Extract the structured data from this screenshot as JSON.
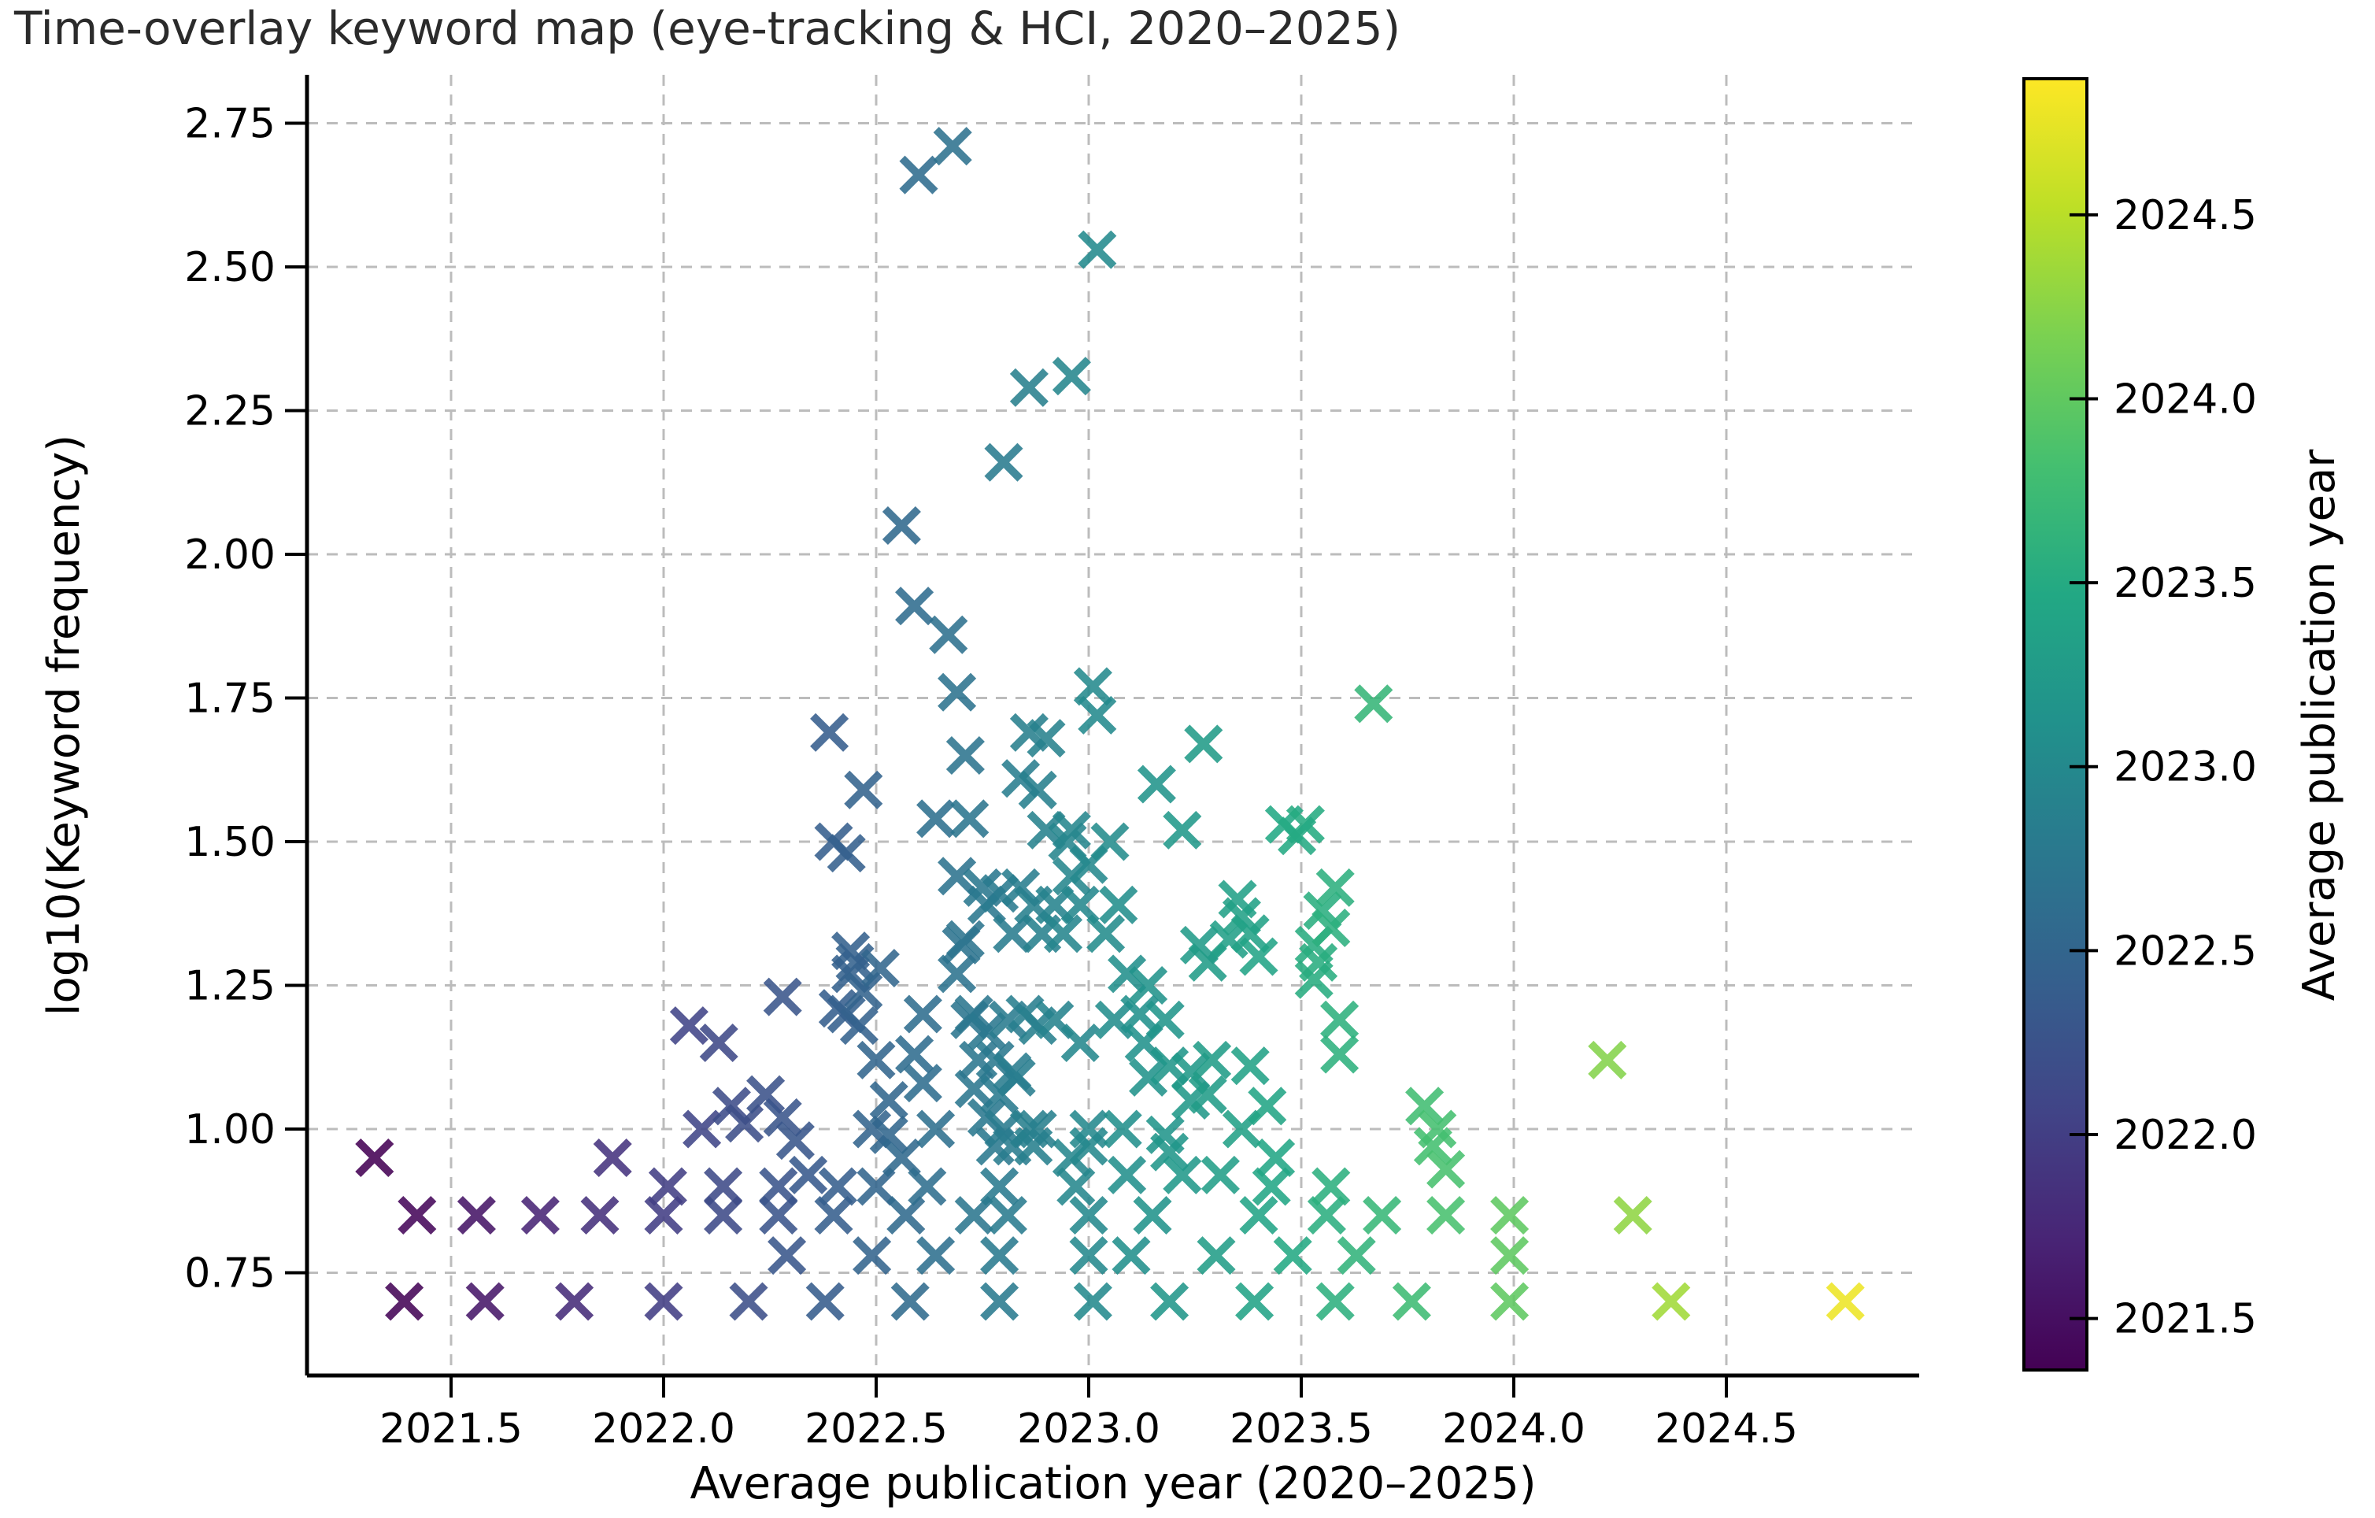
{
  "title": "Time-overlay keyword map (eye-tracking & HCI, 2020–2025)",
  "axes": {
    "xlabel": "Average publication year (2020–2025)",
    "ylabel": "log10(Keyword frequency)",
    "x_ticks": [
      2021.5,
      2022.0,
      2022.5,
      2023.0,
      2023.5,
      2024.0,
      2024.5
    ],
    "x_tick_labels": [
      "2021.5",
      "2022.0",
      "2022.5",
      "2023.0",
      "2023.5",
      "2024.0",
      "2024.5"
    ],
    "y_ticks": [
      0.75,
      1.0,
      1.25,
      1.5,
      1.75,
      2.0,
      2.25,
      2.5,
      2.75
    ],
    "y_tick_labels": [
      "0.75",
      "1.00",
      "1.25",
      "1.50",
      "1.75",
      "2.00",
      "2.25",
      "2.50",
      "2.75"
    ],
    "grid": true
  },
  "colorbar": {
    "label": "Average publication year",
    "ticks": [
      2021.5,
      2022.0,
      2022.5,
      2023.0,
      2023.5,
      2024.0,
      2024.5
    ],
    "tick_labels": [
      "2021.5",
      "2022.0",
      "2022.5",
      "2023.0",
      "2023.5",
      "2024.0",
      "2024.5"
    ],
    "domain": [
      2021.36,
      2024.87
    ]
  },
  "colormap": {
    "name": "viridis",
    "stops": [
      [
        0.0,
        "#440154"
      ],
      [
        0.1,
        "#482475"
      ],
      [
        0.2,
        "#414487"
      ],
      [
        0.3,
        "#355f8d"
      ],
      [
        0.4,
        "#2a788e"
      ],
      [
        0.5,
        "#21918c"
      ],
      [
        0.6,
        "#22a884"
      ],
      [
        0.7,
        "#44bf70"
      ],
      [
        0.8,
        "#7ad151"
      ],
      [
        0.9,
        "#bddf26"
      ],
      [
        1.0,
        "#fde725"
      ]
    ]
  },
  "chart_data": {
    "type": "scatter",
    "marker": "x",
    "title": "Time-overlay keyword map (eye-tracking & HCI, 2020–2025)",
    "xlabel": "Average publication year (2020–2025)",
    "ylabel": "log10(Keyword frequency)",
    "xlim": [
      2021.16,
      2024.95
    ],
    "ylim": [
      0.63,
      2.86
    ],
    "color_by": "x",
    "legend": "none",
    "points": [
      [
        2021.32,
        0.95
      ],
      [
        2021.39,
        0.7
      ],
      [
        2021.42,
        0.85
      ],
      [
        2021.56,
        0.85
      ],
      [
        2021.58,
        0.7
      ],
      [
        2021.71,
        0.85
      ],
      [
        2021.79,
        0.7
      ],
      [
        2021.85,
        0.85
      ],
      [
        2021.88,
        0.95
      ],
      [
        2022.0,
        0.7
      ],
      [
        2022.0,
        0.85
      ],
      [
        2022.01,
        0.9
      ],
      [
        2022.06,
        1.18
      ],
      [
        2022.09,
        1.0
      ],
      [
        2022.13,
        1.15
      ],
      [
        2022.14,
        0.85
      ],
      [
        2022.14,
        0.9
      ],
      [
        2022.16,
        1.04
      ],
      [
        2022.19,
        1.01
      ],
      [
        2022.2,
        0.7
      ],
      [
        2022.24,
        1.06
      ],
      [
        2022.27,
        0.85
      ],
      [
        2022.27,
        0.9
      ],
      [
        2022.28,
        1.02
      ],
      [
        2022.28,
        1.23
      ],
      [
        2022.29,
        0.78
      ],
      [
        2022.31,
        0.98
      ],
      [
        2022.34,
        0.92
      ],
      [
        2022.38,
        0.7
      ],
      [
        2022.4,
        0.85
      ],
      [
        2022.41,
        0.9
      ],
      [
        2022.41,
        1.21
      ],
      [
        2022.43,
        1.2
      ],
      [
        2022.44,
        1.27
      ],
      [
        2022.45,
        1.29
      ],
      [
        2022.44,
        1.31
      ],
      [
        2022.46,
        1.18
      ],
      [
        2022.47,
        1.24
      ],
      [
        2022.51,
        1.28
      ],
      [
        2022.39,
        1.69
      ],
      [
        2022.4,
        1.5
      ],
      [
        2022.43,
        1.48
      ],
      [
        2022.47,
        1.59
      ],
      [
        2022.49,
        0.78
      ],
      [
        2022.5,
        0.9
      ],
      [
        2022.49,
        1.0
      ],
      [
        2022.5,
        1.12
      ],
      [
        2022.53,
        1.05
      ],
      [
        2022.53,
        0.99
      ],
      [
        2022.56,
        2.05
      ],
      [
        2022.6,
        2.66
      ],
      [
        2022.68,
        2.71
      ],
      [
        2022.59,
        1.91
      ],
      [
        2022.67,
        1.86
      ],
      [
        2022.69,
        1.76
      ],
      [
        2022.57,
        0.85
      ],
      [
        2022.58,
        0.7
      ],
      [
        2022.56,
        0.95
      ],
      [
        2022.59,
        1.13
      ],
      [
        2022.61,
        1.2
      ],
      [
        2022.61,
        1.08
      ],
      [
        2022.62,
        0.9
      ],
      [
        2022.64,
        0.78
      ],
      [
        2022.64,
        1.0
      ],
      [
        2022.64,
        1.54
      ],
      [
        2022.72,
        1.54
      ],
      [
        2022.69,
        1.44
      ],
      [
        2022.7,
        1.32
      ],
      [
        2022.69,
        1.27
      ],
      [
        2022.71,
        1.33
      ],
      [
        2022.71,
        1.65
      ],
      [
        2022.72,
        1.19
      ],
      [
        2022.73,
        1.2
      ],
      [
        2022.74,
        1.12
      ],
      [
        2022.73,
        1.07
      ],
      [
        2022.73,
        0.85
      ],
      [
        2022.75,
        1.42
      ],
      [
        2022.76,
        1.39
      ],
      [
        2022.76,
        1.17
      ],
      [
        2022.76,
        1.02
      ],
      [
        2022.78,
        1.12
      ],
      [
        2022.78,
        0.97
      ],
      [
        2022.79,
        1.41
      ],
      [
        2022.79,
        1.06
      ],
      [
        2022.79,
        0.78
      ],
      [
        2022.79,
        0.9
      ],
      [
        2022.79,
        0.7
      ],
      [
        2022.8,
        1.0
      ],
      [
        2022.81,
        1.19
      ],
      [
        2022.82,
        1.34
      ],
      [
        2022.82,
        1.1
      ],
      [
        2022.82,
        0.97
      ],
      [
        2022.81,
        0.85
      ],
      [
        2022.83,
        1.09
      ],
      [
        2022.84,
        1.42
      ],
      [
        2022.84,
        1.61
      ],
      [
        2022.85,
        1.2
      ],
      [
        2022.86,
        1.69
      ],
      [
        2022.86,
        1.0
      ],
      [
        2022.87,
        1.39
      ],
      [
        2022.87,
        0.97
      ],
      [
        2022.88,
        1.59
      ],
      [
        2022.88,
        1.18
      ],
      [
        2022.88,
        1.0
      ],
      [
        2022.89,
        1.34
      ],
      [
        2022.9,
        1.68
      ],
      [
        2022.9,
        1.52
      ],
      [
        2022.92,
        1.39
      ],
      [
        2022.92,
        1.19
      ],
      [
        2022.94,
        1.34
      ],
      [
        2022.95,
        1.5
      ],
      [
        2022.96,
        2.31
      ],
      [
        2022.96,
        1.44
      ],
      [
        2022.96,
        1.52
      ],
      [
        2022.96,
        0.95
      ],
      [
        2022.97,
        0.9
      ],
      [
        2022.98,
        1.39
      ],
      [
        2022.98,
        1.15
      ],
      [
        2023.0,
        1.46
      ],
      [
        2023.0,
        1.0
      ],
      [
        2023.0,
        0.97
      ],
      [
        2023.0,
        0.85
      ],
      [
        2023.0,
        0.78
      ],
      [
        2023.01,
        0.7
      ],
      [
        2022.8,
        2.16
      ],
      [
        2022.86,
        2.29
      ],
      [
        2023.02,
        2.53
      ],
      [
        2023.01,
        1.77
      ],
      [
        2023.02,
        1.72
      ],
      [
        2023.04,
        1.34
      ],
      [
        2023.05,
        1.5
      ],
      [
        2023.07,
        1.39
      ],
      [
        2023.06,
        1.19
      ],
      [
        2023.08,
        1.0
      ],
      [
        2023.09,
        1.27
      ],
      [
        2023.09,
        0.92
      ],
      [
        2023.1,
        0.78
      ],
      [
        2023.12,
        1.2
      ],
      [
        2023.13,
        1.15
      ],
      [
        2023.14,
        1.25
      ],
      [
        2023.14,
        1.09
      ],
      [
        2023.15,
        0.85
      ],
      [
        2023.16,
        1.6
      ],
      [
        2023.18,
        1.19
      ],
      [
        2023.18,
        0.99
      ],
      [
        2023.19,
        1.11
      ],
      [
        2023.19,
        0.96
      ],
      [
        2023.19,
        0.7
      ],
      [
        2023.22,
        1.52
      ],
      [
        2023.22,
        0.92
      ],
      [
        2023.24,
        1.1
      ],
      [
        2023.24,
        1.05
      ],
      [
        2023.26,
        1.32
      ],
      [
        2023.27,
        1.67
      ],
      [
        2023.28,
        1.29
      ],
      [
        2023.28,
        1.06
      ],
      [
        2023.29,
        1.12
      ],
      [
        2023.3,
        0.78
      ],
      [
        2023.31,
        0.92
      ],
      [
        2023.33,
        1.33
      ],
      [
        2023.35,
        1.4
      ],
      [
        2023.36,
        1.37
      ],
      [
        2023.38,
        1.34
      ],
      [
        2023.36,
        1.0
      ],
      [
        2023.38,
        1.11
      ],
      [
        2023.39,
        0.7
      ],
      [
        2023.4,
        1.3
      ],
      [
        2023.4,
        0.85
      ],
      [
        2023.42,
        1.04
      ],
      [
        2023.43,
        0.9
      ],
      [
        2023.44,
        0.95
      ],
      [
        2023.46,
        1.53
      ],
      [
        2023.51,
        1.53
      ],
      [
        2023.49,
        1.51
      ],
      [
        2023.48,
        0.78
      ],
      [
        2023.53,
        1.32
      ],
      [
        2023.54,
        1.29
      ],
      [
        2023.53,
        1.26
      ],
      [
        2023.55,
        1.38
      ],
      [
        2023.57,
        1.35
      ],
      [
        2023.58,
        1.42
      ],
      [
        2023.56,
        0.85
      ],
      [
        2023.58,
        0.7
      ],
      [
        2023.57,
        0.9
      ],
      [
        2023.59,
        1.19
      ],
      [
        2023.59,
        1.13
      ],
      [
        2023.63,
        0.78
      ],
      [
        2023.67,
        1.74
      ],
      [
        2023.69,
        0.85
      ],
      [
        2023.76,
        0.7
      ],
      [
        2023.79,
        1.04
      ],
      [
        2023.82,
        1.0
      ],
      [
        2023.81,
        0.97
      ],
      [
        2023.84,
        0.93
      ],
      [
        2023.84,
        0.85
      ],
      [
        2023.99,
        0.78
      ],
      [
        2023.99,
        0.85
      ],
      [
        2023.99,
        0.7
      ],
      [
        2024.22,
        1.12
      ],
      [
        2024.28,
        0.85
      ],
      [
        2024.37,
        0.7
      ],
      [
        2024.78,
        0.7
      ]
    ]
  }
}
